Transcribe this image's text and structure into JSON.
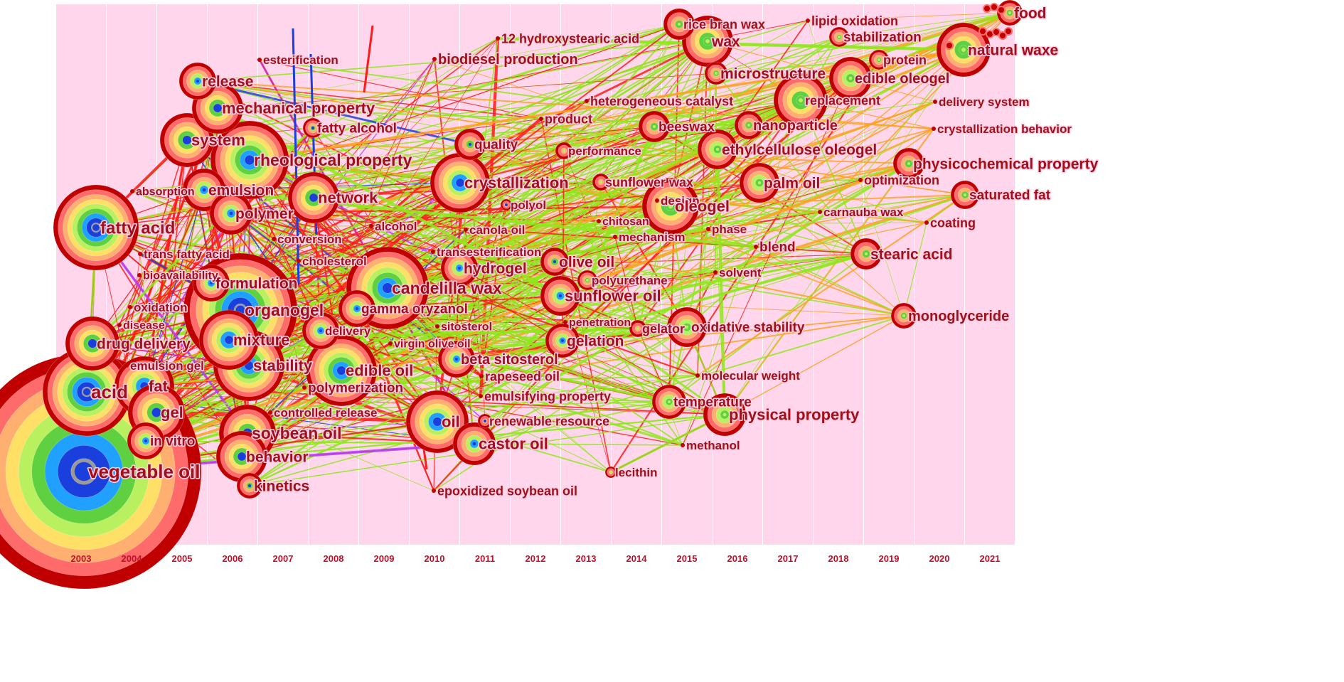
{
  "years": [
    "2003",
    "2004",
    "2005",
    "2006",
    "2007",
    "2008",
    "2009",
    "2010",
    "2011",
    "2012",
    "2013",
    "2014",
    "2015",
    "2016",
    "2017",
    "2018",
    "2019",
    "2020",
    "2021"
  ],
  "colors": {
    "band": "#ffd6ec",
    "label": "#a0101a",
    "yearLabel": "#c0102a",
    "ring": [
      "#c00000",
      "#ff6a6a",
      "#ffb070",
      "#ffe066",
      "#b8f060",
      "#5fd040",
      "#20a0ff",
      "#1a3fdc",
      "#9a9a9a"
    ],
    "link": [
      "#ff1a1a",
      "#8fe81c",
      "#7fe020",
      "#ffa020",
      "#1a3fdc",
      "#b040ff"
    ]
  },
  "nodes": [
    {
      "label": "vegetable oil",
      "year": "2003",
      "size": 165,
      "font": 26
    },
    {
      "label": "fatty acid",
      "year": "2003",
      "size": 60,
      "font": 24
    },
    {
      "label": "acid",
      "year": "2003",
      "size": 62,
      "font": 26
    },
    {
      "label": "drug delivery",
      "year": "2003",
      "size": 38,
      "font": 21
    },
    {
      "label": "absorption",
      "year": "2003",
      "size": 0,
      "font": 16
    },
    {
      "label": "trans fatty acid",
      "year": "2003",
      "size": 0,
      "font": 17
    },
    {
      "label": "bioavailability",
      "year": "2003",
      "size": 0,
      "font": 16
    },
    {
      "label": "oxidation",
      "year": "2003",
      "size": 0,
      "font": 17
    },
    {
      "label": "disease",
      "year": "2003",
      "size": 0,
      "font": 16
    },
    {
      "label": "emulsion gel",
      "year": "2003",
      "size": 0,
      "font": 17
    },
    {
      "label": "fat",
      "year": "2004",
      "size": 42,
      "font": 22
    },
    {
      "label": "gel",
      "year": "2004",
      "size": 40,
      "font": 22
    },
    {
      "label": "in vitro",
      "year": "2004",
      "size": 26,
      "font": 19
    },
    {
      "label": "esterification",
      "year": "2005",
      "size": 0,
      "font": 17
    },
    {
      "label": "release",
      "year": "2005",
      "size": 26,
      "font": 21
    },
    {
      "label": "mechanical property",
      "year": "2005",
      "size": 36,
      "font": 22
    },
    {
      "label": "system",
      "year": "2005",
      "size": 38,
      "font": 22
    },
    {
      "label": "emulsion",
      "year": "2005",
      "size": 30,
      "font": 21
    },
    {
      "label": "polymer",
      "year": "2006",
      "size": 30,
      "font": 21
    },
    {
      "label": "conversion",
      "year": "2006",
      "size": 0,
      "font": 17
    },
    {
      "label": "rheological property",
      "year": "2006",
      "size": 55,
      "font": 23
    },
    {
      "label": "cholesterol",
      "year": "2006",
      "size": 0,
      "font": 17
    },
    {
      "label": "formulation",
      "year": "2006",
      "size": 26,
      "font": 21
    },
    {
      "label": "organogel",
      "year": "2006",
      "size": 80,
      "font": 23
    },
    {
      "label": "mixture",
      "year": "2006",
      "size": 42,
      "font": 22
    },
    {
      "label": "stability",
      "year": "2006",
      "size": 50,
      "font": 22
    },
    {
      "label": "polymerization",
      "year": "2006",
      "size": 0,
      "font": 19
    },
    {
      "label": "controlled release",
      "year": "2006",
      "size": 0,
      "font": 17
    },
    {
      "label": "soybean oil",
      "year": "2006",
      "size": 40,
      "font": 23
    },
    {
      "label": "behavior",
      "year": "2006",
      "size": 36,
      "font": 21
    },
    {
      "label": "kinetics",
      "year": "2006",
      "size": 18,
      "font": 21
    },
    {
      "label": "network",
      "year": "2007",
      "size": 36,
      "font": 22
    },
    {
      "label": "fatty alcohol",
      "year": "2007",
      "size": 14,
      "font": 19
    },
    {
      "label": "alcohol",
      "year": "2008",
      "size": 0,
      "font": 17
    },
    {
      "label": "delivery",
      "year": "2008",
      "size": 26,
      "font": 17
    },
    {
      "label": "virgin olive oil",
      "year": "2008",
      "size": 0,
      "font": 16
    },
    {
      "label": "biodiesel production",
      "year": "2008",
      "size": 0,
      "font": 20
    },
    {
      "label": "12 hydroxystearic acid",
      "year": "2009",
      "size": 0,
      "font": 18
    },
    {
      "label": "transesterification",
      "year": "2009",
      "size": 0,
      "font": 17
    },
    {
      "label": "candelilla wax",
      "year": "2009",
      "size": 58,
      "font": 23
    },
    {
      "label": "gamma oryzanol",
      "year": "2009",
      "size": 26,
      "font": 19
    },
    {
      "label": "edible oil",
      "year": "2009",
      "size": 50,
      "font": 22
    },
    {
      "label": "sitosterol",
      "year": "2009",
      "size": 0,
      "font": 16
    },
    {
      "label": "canola oil",
      "year": "2010",
      "size": 0,
      "font": 17
    },
    {
      "label": "crystallization",
      "year": "2010",
      "size": 42,
      "font": 22
    },
    {
      "label": "quality",
      "year": "2010",
      "size": 22,
      "font": 19
    },
    {
      "label": "beta sitosterol",
      "year": "2010",
      "size": 26,
      "font": 20
    },
    {
      "label": "rapeseed oil",
      "year": "2010",
      "size": 0,
      "font": 18
    },
    {
      "label": "emulsifying property",
      "year": "2010",
      "size": 0,
      "font": 18
    },
    {
      "label": "oil",
      "year": "2010",
      "size": 44,
      "font": 22
    },
    {
      "label": "hydrogel",
      "year": "2010",
      "size": 26,
      "font": 21
    },
    {
      "label": "castor oil",
      "year": "2010",
      "size": 30,
      "font": 22
    },
    {
      "label": "renewable resource",
      "year": "2011",
      "size": 10,
      "font": 18
    },
    {
      "label": "epoxidized soybean oil",
      "year": "2008",
      "size": 0,
      "font": 18
    },
    {
      "label": "heterogeneous catalyst",
      "year": "2011",
      "size": 0,
      "font": 18
    },
    {
      "label": "product",
      "year": "2011",
      "size": 0,
      "font": 18
    },
    {
      "label": "polyol",
      "year": "2011",
      "size": 8,
      "font": 17
    },
    {
      "label": "olive oil",
      "year": "2012",
      "size": 20,
      "font": 21
    },
    {
      "label": "sunflower oil",
      "year": "2012",
      "size": 28,
      "font": 22
    },
    {
      "label": "penetration",
      "year": "2012",
      "size": 0,
      "font": 16
    },
    {
      "label": "gelation",
      "year": "2012",
      "size": 24,
      "font": 21
    },
    {
      "label": "molecular weight",
      "year": "2013",
      "size": 0,
      "font": 17
    },
    {
      "label": "performance",
      "year": "2013",
      "size": 12,
      "font": 17
    },
    {
      "label": "chitosan",
      "year": "2013",
      "size": 0,
      "font": 16
    },
    {
      "label": "mechanism",
      "year": "2013",
      "size": 0,
      "font": 17
    },
    {
      "label": "polyurethane",
      "year": "2013",
      "size": 14,
      "font": 17
    },
    {
      "label": "lecithin",
      "year": "2013",
      "size": 8,
      "font": 17
    },
    {
      "label": "sunflower wax",
      "year": "2014",
      "size": 12,
      "font": 18
    },
    {
      "label": "design",
      "year": "2014",
      "size": 0,
      "font": 17
    },
    {
      "label": "oleogel",
      "year": "2014",
      "size": 40,
      "font": 22
    },
    {
      "label": "beeswax",
      "year": "2014",
      "size": 22,
      "font": 19
    },
    {
      "label": "gelator",
      "year": "2014",
      "size": 12,
      "font": 18
    },
    {
      "label": "oxidative stability",
      "year": "2014",
      "size": 28,
      "font": 19
    },
    {
      "label": "temperature",
      "year": "2014",
      "size": 24,
      "font": 19
    },
    {
      "label": "rice bran wax",
      "year": "2015",
      "size": 22,
      "font": 18
    },
    {
      "label": "wax",
      "year": "2015",
      "size": 36,
      "font": 21
    },
    {
      "label": "microstructure",
      "year": "2015",
      "size": 16,
      "font": 21
    },
    {
      "label": "ethylcellulose oleogel",
      "year": "2015",
      "size": 28,
      "font": 21
    },
    {
      "label": "phase",
      "year": "2015",
      "size": 0,
      "font": 17
    },
    {
      "label": "solvent",
      "year": "2015",
      "size": 0,
      "font": 17
    },
    {
      "label": "physical property",
      "year": "2015",
      "size": 30,
      "font": 22
    },
    {
      "label": "methanol",
      "year": "2015",
      "size": 0,
      "font": 17
    },
    {
      "label": "blend",
      "year": "2016",
      "size": 0,
      "font": 19
    },
    {
      "label": "nanoparticle",
      "year": "2016",
      "size": 20,
      "font": 20
    },
    {
      "label": "palm oil",
      "year": "2016",
      "size": 28,
      "font": 21
    },
    {
      "label": "carnauba wax",
      "year": "2017",
      "size": 0,
      "font": 17
    },
    {
      "label": "lipid oxidation",
      "year": "2017",
      "size": 0,
      "font": 18
    },
    {
      "label": "replacement",
      "year": "2017",
      "size": 38,
      "font": 18
    },
    {
      "label": "optimization",
      "year": "2018",
      "size": 0,
      "font": 18
    },
    {
      "label": "stabilization",
      "year": "2018",
      "size": 14,
      "font": 19
    },
    {
      "label": "edible oleogel",
      "year": "2018",
      "size": 30,
      "font": 20
    },
    {
      "label": "protein",
      "year": "2018",
      "size": 14,
      "font": 18
    },
    {
      "label": "stearic acid",
      "year": "2018",
      "size": 22,
      "font": 21
    },
    {
      "label": "delivery system",
      "year": "2019",
      "size": 0,
      "font": 17
    },
    {
      "label": "crystallization behavior",
      "year": "2019",
      "size": 0,
      "font": 17
    },
    {
      "label": "physicochemical property",
      "year": "2019",
      "size": 22,
      "font": 21
    },
    {
      "label": "monoglyceride",
      "year": "2019",
      "size": 18,
      "font": 20
    },
    {
      "label": "saturated fat",
      "year": "2020",
      "size": 20,
      "font": 19
    },
    {
      "label": "coating",
      "year": "2020",
      "size": 0,
      "font": 18
    },
    {
      "label": "natural waxe",
      "year": "2020",
      "size": 38,
      "font": 21
    },
    {
      "label": "food",
      "year": "2021",
      "size": 18,
      "font": 21
    }
  ]
}
